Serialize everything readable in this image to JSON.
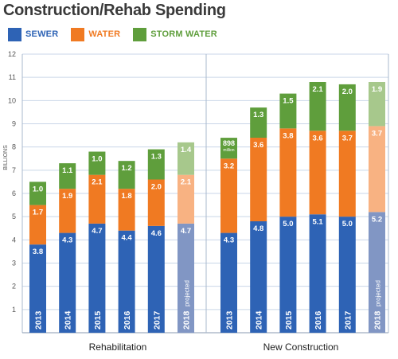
{
  "chart_data": {
    "type": "bar",
    "stacked": true,
    "title": "Construction/Rehab Spending",
    "ylabel": "BILLIONS",
    "ylim": [
      0,
      12
    ],
    "yticks": [
      1,
      2,
      3,
      4,
      5,
      6,
      7,
      8,
      9,
      10,
      11,
      12
    ],
    "grid": true,
    "legend_position": "top-left",
    "series": [
      {
        "name": "SEWER",
        "color": "#2e63b5",
        "projected_color": "#8196c4"
      },
      {
        "name": "WATER",
        "color": "#f07a22",
        "projected_color": "#f8b282"
      },
      {
        "name": "STORM WATER",
        "color": "#5f9e3c",
        "projected_color": "#a7c88c"
      }
    ],
    "groups": [
      {
        "label": "Rehabilitation",
        "bars": [
          {
            "year": "2013",
            "sewer": 3.8,
            "water": 1.7,
            "storm": 1.0,
            "projected": false
          },
          {
            "year": "2014",
            "sewer": 4.3,
            "water": 1.9,
            "storm": 1.1,
            "projected": false
          },
          {
            "year": "2015",
            "sewer": 4.7,
            "water": 2.1,
            "storm": 1.0,
            "projected": false
          },
          {
            "year": "2016",
            "sewer": 4.4,
            "water": 1.8,
            "storm": 1.2,
            "projected": false
          },
          {
            "year": "2017",
            "sewer": 4.6,
            "water": 2.0,
            "storm": 1.3,
            "projected": false
          },
          {
            "year": "2018",
            "sewer": 4.7,
            "water": 2.1,
            "storm": 1.4,
            "projected": true
          }
        ]
      },
      {
        "label": "New Construction",
        "bars": [
          {
            "year": "2013",
            "sewer": 4.3,
            "water": 3.2,
            "storm": 0.898,
            "storm_label": "898",
            "storm_sublabel": "million",
            "projected": false
          },
          {
            "year": "2014",
            "sewer": 4.8,
            "water": 3.6,
            "storm": 1.3,
            "projected": false
          },
          {
            "year": "2015",
            "sewer": 5.0,
            "water": 3.8,
            "storm": 1.5,
            "projected": false
          },
          {
            "year": "2016",
            "sewer": 5.1,
            "water": 3.6,
            "storm": 2.1,
            "projected": false
          },
          {
            "year": "2017",
            "sewer": 5.0,
            "water": 3.7,
            "storm": 2.0,
            "projected": false
          },
          {
            "year": "2018",
            "sewer": 5.2,
            "water": 3.7,
            "storm": 1.9,
            "projected": true
          }
        ]
      }
    ],
    "projected_label": "projected"
  }
}
